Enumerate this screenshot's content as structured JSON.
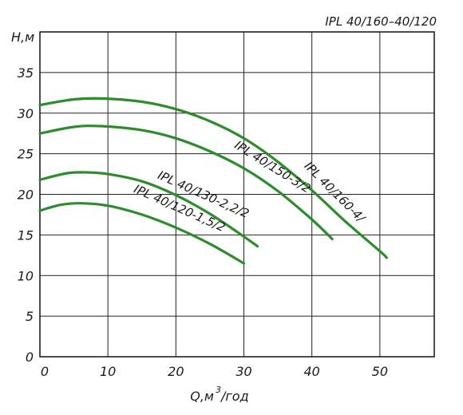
{
  "chart_data": {
    "type": "line",
    "title": "IPL 40/160–40/120",
    "ylabel": "H,м",
    "xlabel_main": "Q,м",
    "xlabel_sup": "3",
    "xlabel_tail": "/год",
    "xlim": [
      0,
      58
    ],
    "ylim": [
      0,
      40
    ],
    "x_ticks": [
      "0",
      "10",
      "20",
      "30",
      "40",
      "50"
    ],
    "y_ticks": [
      "0",
      "5",
      "10",
      "15",
      "20",
      "25",
      "30",
      "35"
    ],
    "grid": true,
    "curve_color": "#2e8b2e",
    "series": [
      {
        "name": "IPL 40/160-4/",
        "x": [
          0,
          5,
          9,
          15,
          20,
          25,
          30,
          35,
          40,
          45,
          50,
          51
        ],
        "y": [
          31.0,
          31.7,
          31.8,
          31.4,
          30.5,
          29.0,
          26.9,
          24.0,
          20.5,
          16.6,
          13.0,
          12.2
        ]
      },
      {
        "name": "IPL 40/150-3/2",
        "x": [
          0,
          5,
          9,
          15,
          20,
          25,
          30,
          35,
          40,
          43
        ],
        "y": [
          27.5,
          28.3,
          28.4,
          27.9,
          26.9,
          25.3,
          23.2,
          20.4,
          16.9,
          14.5
        ]
      },
      {
        "name": "IPL 40/130-2,2/2",
        "x": [
          0,
          4,
          7,
          10,
          15,
          20,
          25,
          30,
          32
        ],
        "y": [
          21.8,
          22.6,
          22.7,
          22.5,
          21.6,
          19.9,
          17.6,
          14.8,
          13.6
        ]
      },
      {
        "name": "IPL 40/120-1,5/2",
        "x": [
          0,
          3,
          6,
          10,
          15,
          20,
          25,
          30
        ],
        "y": [
          18.0,
          18.7,
          18.9,
          18.6,
          17.5,
          15.9,
          13.9,
          11.5
        ]
      }
    ],
    "labels": [
      {
        "text": "IPL 40/160-4/",
        "x": 38.8,
        "y": 23.4,
        "angle": 45
      },
      {
        "text": "IPL 40/150-3/2",
        "x": 28.5,
        "y": 25.8,
        "angle": 32
      },
      {
        "text": "IPL 40/130-2,2/2",
        "x": 17.2,
        "y": 22.0,
        "angle": 24
      },
      {
        "text": "IPL 40/120-1,5/2",
        "x": 13.7,
        "y": 20.3,
        "angle": 24
      }
    ]
  }
}
